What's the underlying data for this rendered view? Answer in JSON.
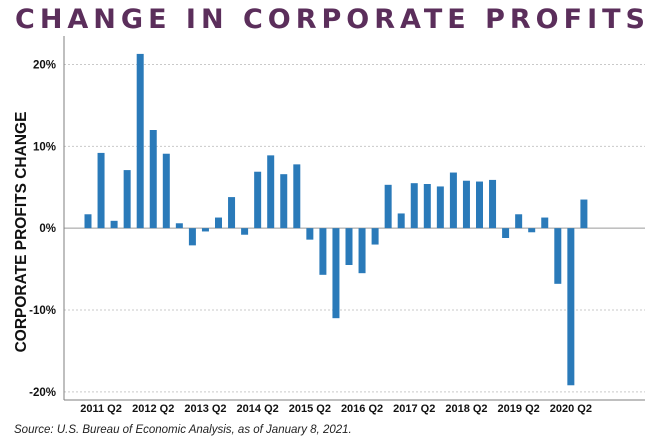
{
  "colors": {
    "bar": "#2a7ab9",
    "title": "#5b2e5b",
    "grid": "#c9c9c9",
    "axis": "#7f7f7f"
  },
  "chart_data": {
    "type": "bar",
    "title": "CHANGE IN CORPORATE PROFITS",
    "xlabel": "",
    "ylabel": "CORPORATE PROFITS CHANGE",
    "ylim": [
      -21,
      23
    ],
    "grid": true,
    "legend": "none",
    "y_ticks": [
      {
        "value": 20,
        "label": "20%"
      },
      {
        "value": 10,
        "label": "10%"
      },
      {
        "value": 0,
        "label": "0%"
      },
      {
        "value": -10,
        "label": "-10%"
      },
      {
        "value": -20,
        "label": "-20%"
      }
    ],
    "x_tick_labels": [
      {
        "label": "2011 Q2",
        "index": 1
      },
      {
        "label": "2012 Q2",
        "index": 5
      },
      {
        "label": "2013 Q2",
        "index": 9
      },
      {
        "label": "2014 Q2",
        "index": 13
      },
      {
        "label": "2015 Q2",
        "index": 17
      },
      {
        "label": "2016 Q2",
        "index": 21
      },
      {
        "label": "2017 Q2",
        "index": 25
      },
      {
        "label": "2018 Q2",
        "index": 29
      },
      {
        "label": "2019 Q2",
        "index": 33
      },
      {
        "label": "2020 Q2",
        "index": 37
      }
    ],
    "categories": [
      "2011 Q1",
      "2011 Q2",
      "2011 Q3",
      "2011 Q4",
      "2012 Q1",
      "2012 Q2",
      "2012 Q3",
      "2012 Q4",
      "2013 Q1",
      "2013 Q2",
      "2013 Q3",
      "2013 Q4",
      "2014 Q1",
      "2014 Q2",
      "2014 Q3",
      "2014 Q4",
      "2015 Q1",
      "2015 Q2",
      "2015 Q3",
      "2015 Q4",
      "2016 Q1",
      "2016 Q2",
      "2016 Q3",
      "2016 Q4",
      "2017 Q1",
      "2017 Q2",
      "2017 Q3",
      "2017 Q4",
      "2018 Q1",
      "2018 Q2",
      "2018 Q3",
      "2018 Q4",
      "2019 Q1",
      "2019 Q2",
      "2019 Q3",
      "2019 Q4",
      "2020 Q1",
      "2020 Q2",
      "2020 Q3"
    ],
    "values": [
      1.7,
      9.2,
      0.9,
      7.1,
      21.3,
      12.0,
      9.1,
      0.6,
      -2.1,
      -0.4,
      1.3,
      3.8,
      -0.8,
      6.9,
      8.9,
      6.6,
      7.8,
      -1.4,
      -5.7,
      -11.0,
      -4.5,
      -5.5,
      -2.0,
      5.3,
      1.8,
      5.5,
      5.4,
      5.1,
      6.8,
      5.8,
      5.7,
      5.9,
      -1.2,
      1.7,
      -0.5,
      1.3,
      -6.8,
      -19.2,
      3.5
    ]
  },
  "source_note": "Source: U.S. Bureau of Economic Analysis, as of January 8, 2021."
}
